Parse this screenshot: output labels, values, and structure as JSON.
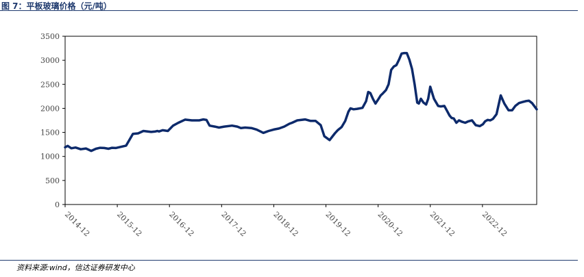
{
  "figure": {
    "title": "图 7：平板玻璃价格（元/吨）",
    "source": "资料来源:wind，信达证券研发中心"
  },
  "chart_data": {
    "type": "line",
    "title": "",
    "xlabel": "",
    "ylabel": "",
    "ylim": [
      0,
      3500
    ],
    "yticks": [
      0,
      500,
      1000,
      1500,
      2000,
      2500,
      3000,
      3500
    ],
    "xlim": [
      2014.25,
      2023.29
    ],
    "xticks": [
      {
        "label": "2014-12",
        "x": 2014.25
      },
      {
        "label": "2015-12",
        "x": 2015.25
      },
      {
        "label": "2016-12",
        "x": 2016.25
      },
      {
        "label": "2017-12",
        "x": 2017.25
      },
      {
        "label": "2018-12",
        "x": 2018.25
      },
      {
        "label": "2019-12",
        "x": 2019.25
      },
      {
        "label": "2020-12",
        "x": 2020.25
      },
      {
        "label": "2021-12",
        "x": 2021.25
      },
      {
        "label": "2022-12",
        "x": 2022.25
      }
    ],
    "grid": false,
    "legend": "none",
    "line_color": "#0d2a6b",
    "series": [
      {
        "x": [
          2014.25,
          2014.3,
          2014.37,
          2014.45,
          2014.55,
          2014.65,
          2014.75,
          2014.84,
          2014.92,
          2015.0,
          2015.08,
          2015.15,
          2015.22,
          2015.32,
          2015.42,
          2015.55,
          2015.65,
          2015.75,
          2015.9,
          2015.98,
          2016.02,
          2016.05,
          2016.12,
          2016.22,
          2016.32,
          2016.42,
          2016.55,
          2016.68,
          2016.82,
          2016.9,
          2016.96,
          2017.02,
          2017.12,
          2017.2,
          2017.3,
          2017.45,
          2017.55,
          2017.62,
          2017.7,
          2017.82,
          2017.92,
          2018.05,
          2018.15,
          2018.25,
          2018.35,
          2018.45,
          2018.55,
          2018.6,
          2018.7,
          2018.85,
          2018.95,
          2019.05,
          2019.15,
          2019.22,
          2019.32,
          2019.42,
          2019.48,
          2019.55,
          2019.62,
          2019.68,
          2019.72,
          2019.78,
          2019.85,
          2019.95,
          2020.02,
          2020.06,
          2020.1,
          2020.15,
          2020.2,
          2020.26,
          2020.3,
          2020.34,
          2020.4,
          2020.45,
          2020.5,
          2020.55,
          2020.6,
          2020.65,
          2020.7,
          2020.75,
          2020.8,
          2020.85,
          2020.9,
          2020.95,
          2021.0,
          2021.03,
          2021.07,
          2021.12,
          2021.17,
          2021.21,
          2021.25,
          2021.32,
          2021.4,
          2021.45,
          2021.52,
          2021.57,
          2021.62,
          2021.66,
          2021.7,
          2021.75,
          2021.8,
          2021.86,
          2021.92,
          2021.98,
          2022.05,
          2022.12,
          2022.2,
          2022.26,
          2022.3,
          2022.35,
          2022.4,
          2022.45,
          2022.52,
          2022.6,
          2022.67,
          2022.75,
          2022.82,
          2022.88,
          2022.95,
          2023.01,
          2023.08,
          2023.14,
          2023.2,
          2023.29
        ],
        "y": [
          1190,
          1220,
          1170,
          1185,
          1150,
          1165,
          1115,
          1160,
          1180,
          1175,
          1160,
          1180,
          1175,
          1200,
          1225,
          1470,
          1480,
          1530,
          1510,
          1520,
          1530,
          1520,
          1545,
          1530,
          1640,
          1700,
          1765,
          1750,
          1750,
          1770,
          1760,
          1640,
          1620,
          1600,
          1620,
          1640,
          1620,
          1590,
          1600,
          1590,
          1560,
          1490,
          1530,
          1560,
          1580,
          1620,
          1680,
          1700,
          1750,
          1770,
          1740,
          1740,
          1650,
          1420,
          1340,
          1480,
          1550,
          1610,
          1740,
          1930,
          2000,
          1980,
          1990,
          2010,
          2150,
          2340,
          2320,
          2200,
          2100,
          2200,
          2270,
          2310,
          2380,
          2500,
          2800,
          2870,
          2900,
          3010,
          3140,
          3150,
          3150,
          3010,
          2820,
          2500,
          2120,
          2100,
          2200,
          2120,
          2080,
          2200,
          2450,
          2200,
          2050,
          2040,
          2050,
          1950,
          1850,
          1800,
          1790,
          1700,
          1750,
          1720,
          1700,
          1730,
          1750,
          1650,
          1630,
          1670,
          1730,
          1760,
          1750,
          1780,
          1880,
          2270,
          2100,
          1960,
          1960,
          2050,
          2110,
          2130,
          2150,
          2160,
          2110,
          1980
        ]
      }
    ]
  }
}
